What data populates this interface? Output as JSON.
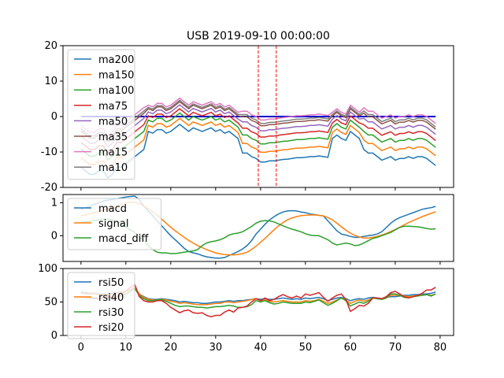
{
  "figure": {
    "title": "USB 2019-09-10 00:00:00"
  },
  "chart_data": [
    {
      "type": "line",
      "xlim": [
        -4.0,
        83.0
      ],
      "ylim": [
        -20,
        20
      ],
      "yticks": [
        -20,
        -10,
        0,
        10,
        20
      ],
      "xticks": [
        0,
        10,
        20,
        30,
        40,
        50,
        60,
        70,
        80
      ],
      "show_xtick_labels": false,
      "legend": "top-left",
      "zero_line": {
        "y": 0,
        "color": "#0000cc"
      },
      "vlines": {
        "x": [
          39.5,
          43.5
        ],
        "color": "#ff0000",
        "style": "dashed"
      },
      "series": [
        {
          "name": "ma200",
          "color": "#1f77b4",
          "offset": -5.2,
          "values": []
        },
        {
          "name": "ma150",
          "color": "#ff7f0e",
          "offset": -3.5,
          "values": []
        },
        {
          "name": "ma100",
          "color": "#2ca02c",
          "offset": -2.0,
          "values": []
        },
        {
          "name": "ma75",
          "color": "#d62728",
          "offset": -0.8,
          "values": []
        },
        {
          "name": "ma50",
          "color": "#9467bd",
          "offset": 0.3,
          "values": []
        },
        {
          "name": "ma35",
          "color": "#8c564b",
          "offset": 1.2,
          "values": []
        },
        {
          "name": "ma15",
          "color": "#e377c2",
          "offset": 2.2,
          "values": []
        },
        {
          "name": "ma10",
          "color": "#7f7f7f",
          "offset": 1.6,
          "values": []
        }
      ],
      "base_values": [
        -6,
        -7,
        -8,
        -8,
        -7,
        -7,
        -9,
        -8,
        -6,
        -6,
        -5,
        -4,
        -3,
        -2,
        -1,
        1,
        0.5,
        1.5,
        1.5,
        0.5,
        1,
        2,
        3,
        2,
        1,
        2,
        1.5,
        1,
        1.5,
        2,
        1,
        1.5,
        0.5,
        1,
        0,
        -1,
        -2,
        -2,
        -3,
        -3.5,
        -4.5,
        -4.5,
        -4.2,
        -4.2,
        -4,
        -3.8,
        -3.7,
        -3.5,
        -3.3,
        -3.3,
        -3.2,
        -3,
        -3,
        -2.8,
        -3,
        -3.2,
        -1,
        0,
        -1,
        -1.5,
        1,
        0,
        -1,
        -1,
        -2,
        -2,
        -3,
        -4,
        -3.5,
        -3,
        -4,
        -3.5,
        -3.5,
        -3,
        -3.5,
        -3,
        -3,
        -3.5,
        -4.5,
        -5.5
      ],
      "zero_until": 79
    },
    {
      "type": "line",
      "xlim": [
        -4.0,
        83.0
      ],
      "ylim": [
        -0.78,
        1.25
      ],
      "yticks": [
        0,
        1
      ],
      "xticks": [
        0,
        10,
        20,
        30,
        40,
        50,
        60,
        70,
        80
      ],
      "show_xtick_labels": false,
      "legend": "top-left",
      "series": [
        {
          "name": "macd",
          "color": "#1f77b4",
          "values": [
            0.8,
            0.85,
            0.9,
            0.95,
            1.0,
            1.05,
            1.08,
            1.1,
            1.12,
            1.15,
            1.17,
            1.19,
            1.2,
            1.1,
            0.9,
            0.75,
            0.6,
            0.45,
            0.3,
            0.15,
            0.0,
            -0.12,
            -0.25,
            -0.38,
            -0.48,
            -0.52,
            -0.55,
            -0.6,
            -0.64,
            -0.66,
            -0.68,
            -0.68,
            -0.66,
            -0.6,
            -0.54,
            -0.48,
            -0.4,
            -0.3,
            -0.15,
            0.05,
            0.2,
            0.35,
            0.48,
            0.58,
            0.66,
            0.72,
            0.75,
            0.76,
            0.75,
            0.72,
            0.7,
            0.66,
            0.64,
            0.62,
            0.6,
            0.45,
            0.3,
            0.15,
            0.05,
            0.02,
            -0.02,
            -0.05,
            -0.05,
            -0.02,
            0.0,
            0.02,
            0.05,
            0.12,
            0.25,
            0.38,
            0.48,
            0.55,
            0.6,
            0.65,
            0.7,
            0.75,
            0.8,
            0.83,
            0.85,
            0.89
          ]
        },
        {
          "name": "signal",
          "color": "#ff7f0e",
          "values": [
            0.6,
            0.63,
            0.66,
            0.7,
            0.74,
            0.78,
            0.82,
            0.86,
            0.9,
            0.95,
            1.0,
            1.02,
            1.02,
            0.98,
            0.9,
            0.82,
            0.72,
            0.62,
            0.5,
            0.38,
            0.26,
            0.15,
            0.05,
            -0.05,
            -0.14,
            -0.22,
            -0.3,
            -0.36,
            -0.42,
            -0.47,
            -0.52,
            -0.55,
            -0.57,
            -0.58,
            -0.58,
            -0.57,
            -0.54,
            -0.5,
            -0.42,
            -0.32,
            -0.2,
            -0.08,
            0.05,
            0.18,
            0.3,
            0.4,
            0.48,
            0.54,
            0.58,
            0.61,
            0.62,
            0.63,
            0.63,
            0.62,
            0.6,
            0.55,
            0.48,
            0.38,
            0.27,
            0.17,
            0.08,
            0.01,
            -0.04,
            -0.07,
            -0.07,
            -0.05,
            -0.02,
            0.02,
            0.07,
            0.13,
            0.19,
            0.26,
            0.33,
            0.4,
            0.46,
            0.52,
            0.58,
            0.63,
            0.68,
            0.73
          ]
        },
        {
          "name": "macd_diff",
          "color": "#2ca02c",
          "values": [
            0.4,
            0.42,
            0.44,
            0.46,
            0.48,
            0.5,
            0.5,
            0.48,
            0.44,
            0.36,
            0.26,
            0.18,
            0.1,
            -0.02,
            -0.14,
            -0.3,
            -0.42,
            -0.5,
            -0.52,
            -0.52,
            -0.54,
            -0.54,
            -0.52,
            -0.5,
            -0.48,
            -0.46,
            -0.42,
            -0.3,
            -0.22,
            -0.18,
            -0.16,
            -0.12,
            -0.06,
            0.02,
            0.06,
            0.08,
            0.12,
            0.2,
            0.28,
            0.38,
            0.44,
            0.46,
            0.45,
            0.42,
            0.36,
            0.3,
            0.25,
            0.2,
            0.16,
            0.12,
            0.06,
            0.02,
            0.0,
            0.0,
            -0.06,
            -0.12,
            -0.22,
            -0.28,
            -0.25,
            -0.22,
            -0.25,
            -0.3,
            -0.28,
            -0.22,
            -0.15,
            -0.08,
            -0.05,
            0.0,
            0.05,
            0.1,
            0.18,
            0.25,
            0.29,
            0.29,
            0.28,
            0.27,
            0.25,
            0.22,
            0.2,
            0.21
          ]
        }
      ]
    },
    {
      "type": "line",
      "xlim": [
        -4.0,
        83.0
      ],
      "ylim": [
        0,
        100
      ],
      "yticks": [
        0,
        50,
        100
      ],
      "xticks": [
        0,
        10,
        20,
        30,
        40,
        50,
        60,
        70,
        80
      ],
      "show_xtick_labels": true,
      "legend": "top-left",
      "series": [
        {
          "name": "rsi50",
          "color": "#1f77b4",
          "values": [
            65,
            64,
            63,
            63,
            62,
            62,
            62,
            63,
            64,
            65,
            66,
            68,
            70,
            62,
            58,
            55,
            54,
            54,
            55,
            54,
            53,
            52,
            50,
            51,
            50,
            49,
            49,
            48,
            48,
            49,
            50,
            50,
            51,
            52,
            51,
            52,
            52,
            53,
            54,
            55,
            54,
            55,
            54,
            54,
            55,
            56,
            55,
            54,
            55,
            54,
            56,
            55,
            56,
            57,
            55,
            52,
            54,
            56,
            57,
            55,
            52,
            54,
            55,
            54,
            56,
            57,
            56,
            55,
            57,
            58,
            58,
            59,
            60,
            60,
            61,
            61,
            62,
            62,
            63,
            65
          ]
        },
        {
          "name": "rsi40",
          "color": "#ff7f0e",
          "values": [
            63,
            62,
            62,
            62,
            61,
            61,
            61,
            62,
            63,
            64,
            66,
            68,
            72,
            62,
            57,
            54,
            53,
            53,
            54,
            53,
            51,
            50,
            48,
            49,
            48,
            47,
            46,
            46,
            46,
            47,
            48,
            48,
            50,
            50,
            49,
            50,
            51,
            52,
            54,
            55,
            52,
            53,
            51,
            50,
            51,
            52,
            51,
            50,
            50,
            50,
            52,
            51,
            52,
            54,
            51,
            48,
            50,
            53,
            56,
            53,
            48,
            51,
            53,
            51,
            53,
            56,
            55,
            54,
            56,
            60,
            60,
            60,
            59,
            58,
            59,
            60,
            60,
            61,
            60,
            62
          ]
        },
        {
          "name": "rsi30",
          "color": "#2ca02c",
          "values": [
            58,
            57,
            56,
            56,
            55,
            56,
            57,
            57,
            58,
            59,
            62,
            66,
            70,
            60,
            55,
            52,
            52,
            53,
            53,
            51,
            48,
            45,
            43,
            44,
            44,
            43,
            42,
            42,
            41,
            42,
            43,
            43,
            44,
            45,
            44,
            42,
            42,
            43,
            46,
            52,
            50,
            52,
            49,
            47,
            48,
            50,
            49,
            48,
            48,
            48,
            50,
            49,
            51,
            53,
            49,
            45,
            48,
            52,
            56,
            52,
            44,
            47,
            50,
            48,
            51,
            56,
            55,
            54,
            56,
            62,
            62,
            60,
            57,
            56,
            58,
            59,
            60,
            61,
            59,
            62
          ]
        },
        {
          "name": "rsi20",
          "color": "#d62728",
          "values": [
            58,
            57,
            56,
            55,
            55,
            57,
            58,
            56,
            58,
            61,
            66,
            72,
            76,
            58,
            52,
            50,
            50,
            52,
            52,
            48,
            42,
            38,
            34,
            37,
            38,
            34,
            33,
            34,
            30,
            28,
            30,
            30,
            35,
            38,
            35,
            41,
            42,
            44,
            50,
            55,
            52,
            56,
            52,
            54,
            58,
            61,
            58,
            56,
            59,
            56,
            62,
            60,
            62,
            64,
            57,
            51,
            56,
            60,
            62,
            54,
            36,
            40,
            45,
            44,
            48,
            56,
            56,
            55,
            58,
            64,
            66,
            62,
            58,
            56,
            58,
            60,
            63,
            68,
            68,
            72
          ]
        }
      ]
    }
  ]
}
